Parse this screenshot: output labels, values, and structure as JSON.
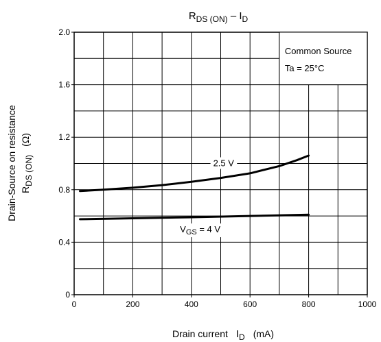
{
  "chart_data": {
    "type": "line",
    "title": {
      "r": "R",
      "r_sub": "DS (ON)",
      "sep": " – I",
      "d_sub": "D"
    },
    "xlabel": {
      "main": "Drain current",
      "symbol": "I",
      "sub": "D",
      "unit": "(mA)"
    },
    "ylabel": {
      "line1": "Drain-Source on resistance",
      "symbol": "R",
      "sub": "DS (ON)",
      "unit": "(Ω)"
    },
    "xlim": [
      0,
      1000
    ],
    "ylim": [
      0,
      2.0
    ],
    "x_ticks": [
      0,
      200,
      400,
      600,
      800,
      1000
    ],
    "x_tick_labels": [
      "0",
      "200",
      "400",
      "600",
      "800",
      "1000"
    ],
    "y_ticks": [
      0,
      0.4,
      0.8,
      1.2,
      1.6,
      2.0
    ],
    "y_tick_labels": [
      "0",
      "0.4",
      "0.8",
      "1.2",
      "1.6",
      "2.0"
    ],
    "x_minor_step": 100,
    "y_minor_step": 0.2,
    "grid": true,
    "legend_box": {
      "line1": "Common Source",
      "line2": "Ta = 25°C",
      "placement": "top-right"
    },
    "series": [
      {
        "label_text": "2.5 V",
        "x": [
          20,
          100,
          200,
          300,
          400,
          500,
          600,
          700,
          760,
          800
        ],
        "y": [
          0.79,
          0.8,
          0.815,
          0.835,
          0.86,
          0.89,
          0.925,
          0.98,
          1.025,
          1.06
        ]
      },
      {
        "label_main": "V",
        "label_sub": "GS",
        "label_rest": " = 4 V",
        "x": [
          20,
          200,
          400,
          600,
          800
        ],
        "y": [
          0.575,
          0.582,
          0.59,
          0.6,
          0.61
        ]
      }
    ]
  }
}
